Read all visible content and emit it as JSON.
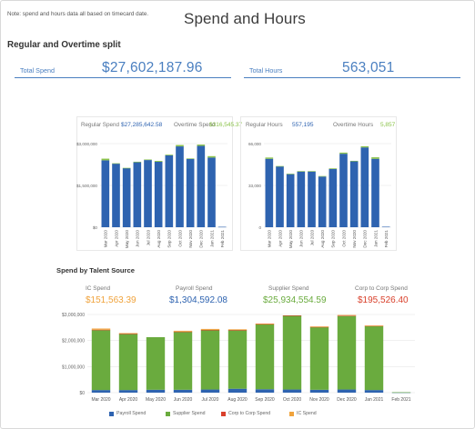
{
  "header": {
    "note": "Note: spend and hours data all based on timecard date.",
    "title": "Spend and Hours"
  },
  "overtime_section": {
    "title": "Regular and Overtime split"
  },
  "kpis": {
    "total_spend_label": "Total Spend",
    "total_spend_value": "$27,602,187.96",
    "total_hours_label": "Total Hours",
    "total_hours_value": "563,051"
  },
  "spend_chart_legend": {
    "regular_label": "Regular Spend",
    "regular_value": "$27,285,642.58",
    "overtime_label": "Overtime Spend",
    "overtime_value": "$316,545.37"
  },
  "hours_chart_legend": {
    "regular_label": "Regular Hours",
    "regular_value": "557,195",
    "overtime_label": "Overtime Hours",
    "overtime_value": "5,857"
  },
  "talent_section": {
    "title": "Spend by Talent Source",
    "ic_label": "IC Spend",
    "ic_value": "$151,563.39",
    "payroll_label": "Payroll Spend",
    "payroll_value": "$1,304,592.08",
    "supplier_label": "Supplier Spend",
    "supplier_value": "$25,934,554.59",
    "c2c_label": "Corp to Corp Spend",
    "c2c_value": "$195,526.40"
  },
  "bottom_legend": {
    "payroll": "Payroll Spend",
    "supplier": "Supplier Spend",
    "c2c": "Corp to Corp Spend",
    "ic": "IC Spend"
  },
  "colors": {
    "regular": "#2e63b0",
    "overtime": "#8bc34a",
    "payroll": "#2e63b0",
    "supplier": "#6aab3e",
    "c2c": "#d9402b",
    "ic": "#f0a33c",
    "kpi": "#4a7fc0",
    "ic_value": "#f0a33c",
    "payroll_value": "#2e63b0",
    "supplier_value": "#6aab3e",
    "c2c_value": "#d9402b"
  },
  "chart_data": [
    {
      "type": "bar",
      "title": "",
      "categories": [
        "Mar 2020",
        "Apr 2020",
        "May 2020",
        "Jun 2020",
        "Jul 2020",
        "Aug 2020",
        "Sep 2020",
        "Oct 2020",
        "Nov 2020",
        "Dec 2020",
        "Jan 2021",
        "Feb 2021"
      ],
      "series": [
        {
          "name": "Regular Spend",
          "values": [
            2400000,
            2280000,
            2120000,
            2330000,
            2410000,
            2350000,
            2580000,
            2900000,
            2450000,
            2920000,
            2500000,
            15000
          ]
        },
        {
          "name": "Overtime Spend",
          "values": [
            60000,
            15000,
            10000,
            20000,
            20000,
            30000,
            25000,
            50000,
            20000,
            45000,
            50000,
            0
          ]
        }
      ],
      "ytick_labels": [
        "$0",
        "$1,500,000",
        "$3,000,000"
      ],
      "ylim": [
        0,
        3000000
      ]
    },
    {
      "type": "bar",
      "title": "",
      "categories": [
        "Mar 2020",
        "Apr 2020",
        "May 2020",
        "Jun 2020",
        "Jul 2020",
        "Aug 2020",
        "Sep 2020",
        "Oct 2020",
        "Nov 2020",
        "Dec 2020",
        "Jan 2021",
        "Feb 2021"
      ],
      "series": [
        {
          "name": "Regular Hours",
          "values": [
            54000,
            48000,
            42000,
            44000,
            44000,
            40000,
            46000,
            58000,
            52000,
            63000,
            54000,
            400
          ]
        },
        {
          "name": "Overtime Hours",
          "values": [
            1000,
            300,
            200,
            300,
            300,
            400,
            500,
            900,
            400,
            900,
            1200,
            0
          ]
        }
      ],
      "ytick_labels": [
        "0",
        "33,000",
        "66,000"
      ],
      "ylim": [
        0,
        66000
      ]
    },
    {
      "type": "bar",
      "title": "",
      "categories": [
        "Mar 2020",
        "Apr 2020",
        "May 2020",
        "Jun 2020",
        "Jul 2020",
        "Aug 2020",
        "Sep 2020",
        "Oct 2020",
        "Nov 2020",
        "Dec 2020",
        "Jan 2021",
        "Feb 2021"
      ],
      "series": [
        {
          "name": "Payroll Spend",
          "values": [
            100000,
            100000,
            110000,
            110000,
            120000,
            150000,
            130000,
            120000,
            110000,
            120000,
            100000,
            10000
          ]
        },
        {
          "name": "Supplier Spend",
          "values": [
            2300000,
            2150000,
            2020000,
            2220000,
            2270000,
            2240000,
            2490000,
            2830000,
            2400000,
            2820000,
            2450000,
            5000
          ]
        },
        {
          "name": "Corp to Corp Spend",
          "values": [
            15000,
            15000,
            0,
            15000,
            20000,
            15000,
            15000,
            15000,
            15000,
            20000,
            15000,
            0
          ]
        },
        {
          "name": "IC Spend",
          "values": [
            45000,
            20000,
            0,
            30000,
            35000,
            25000,
            15000,
            0,
            15000,
            20000,
            10000,
            0
          ]
        }
      ],
      "ytick_labels": [
        "$0",
        "$1,000,000",
        "$2,000,000",
        "$3,000,000"
      ],
      "ylim": [
        0,
        3000000
      ]
    }
  ]
}
